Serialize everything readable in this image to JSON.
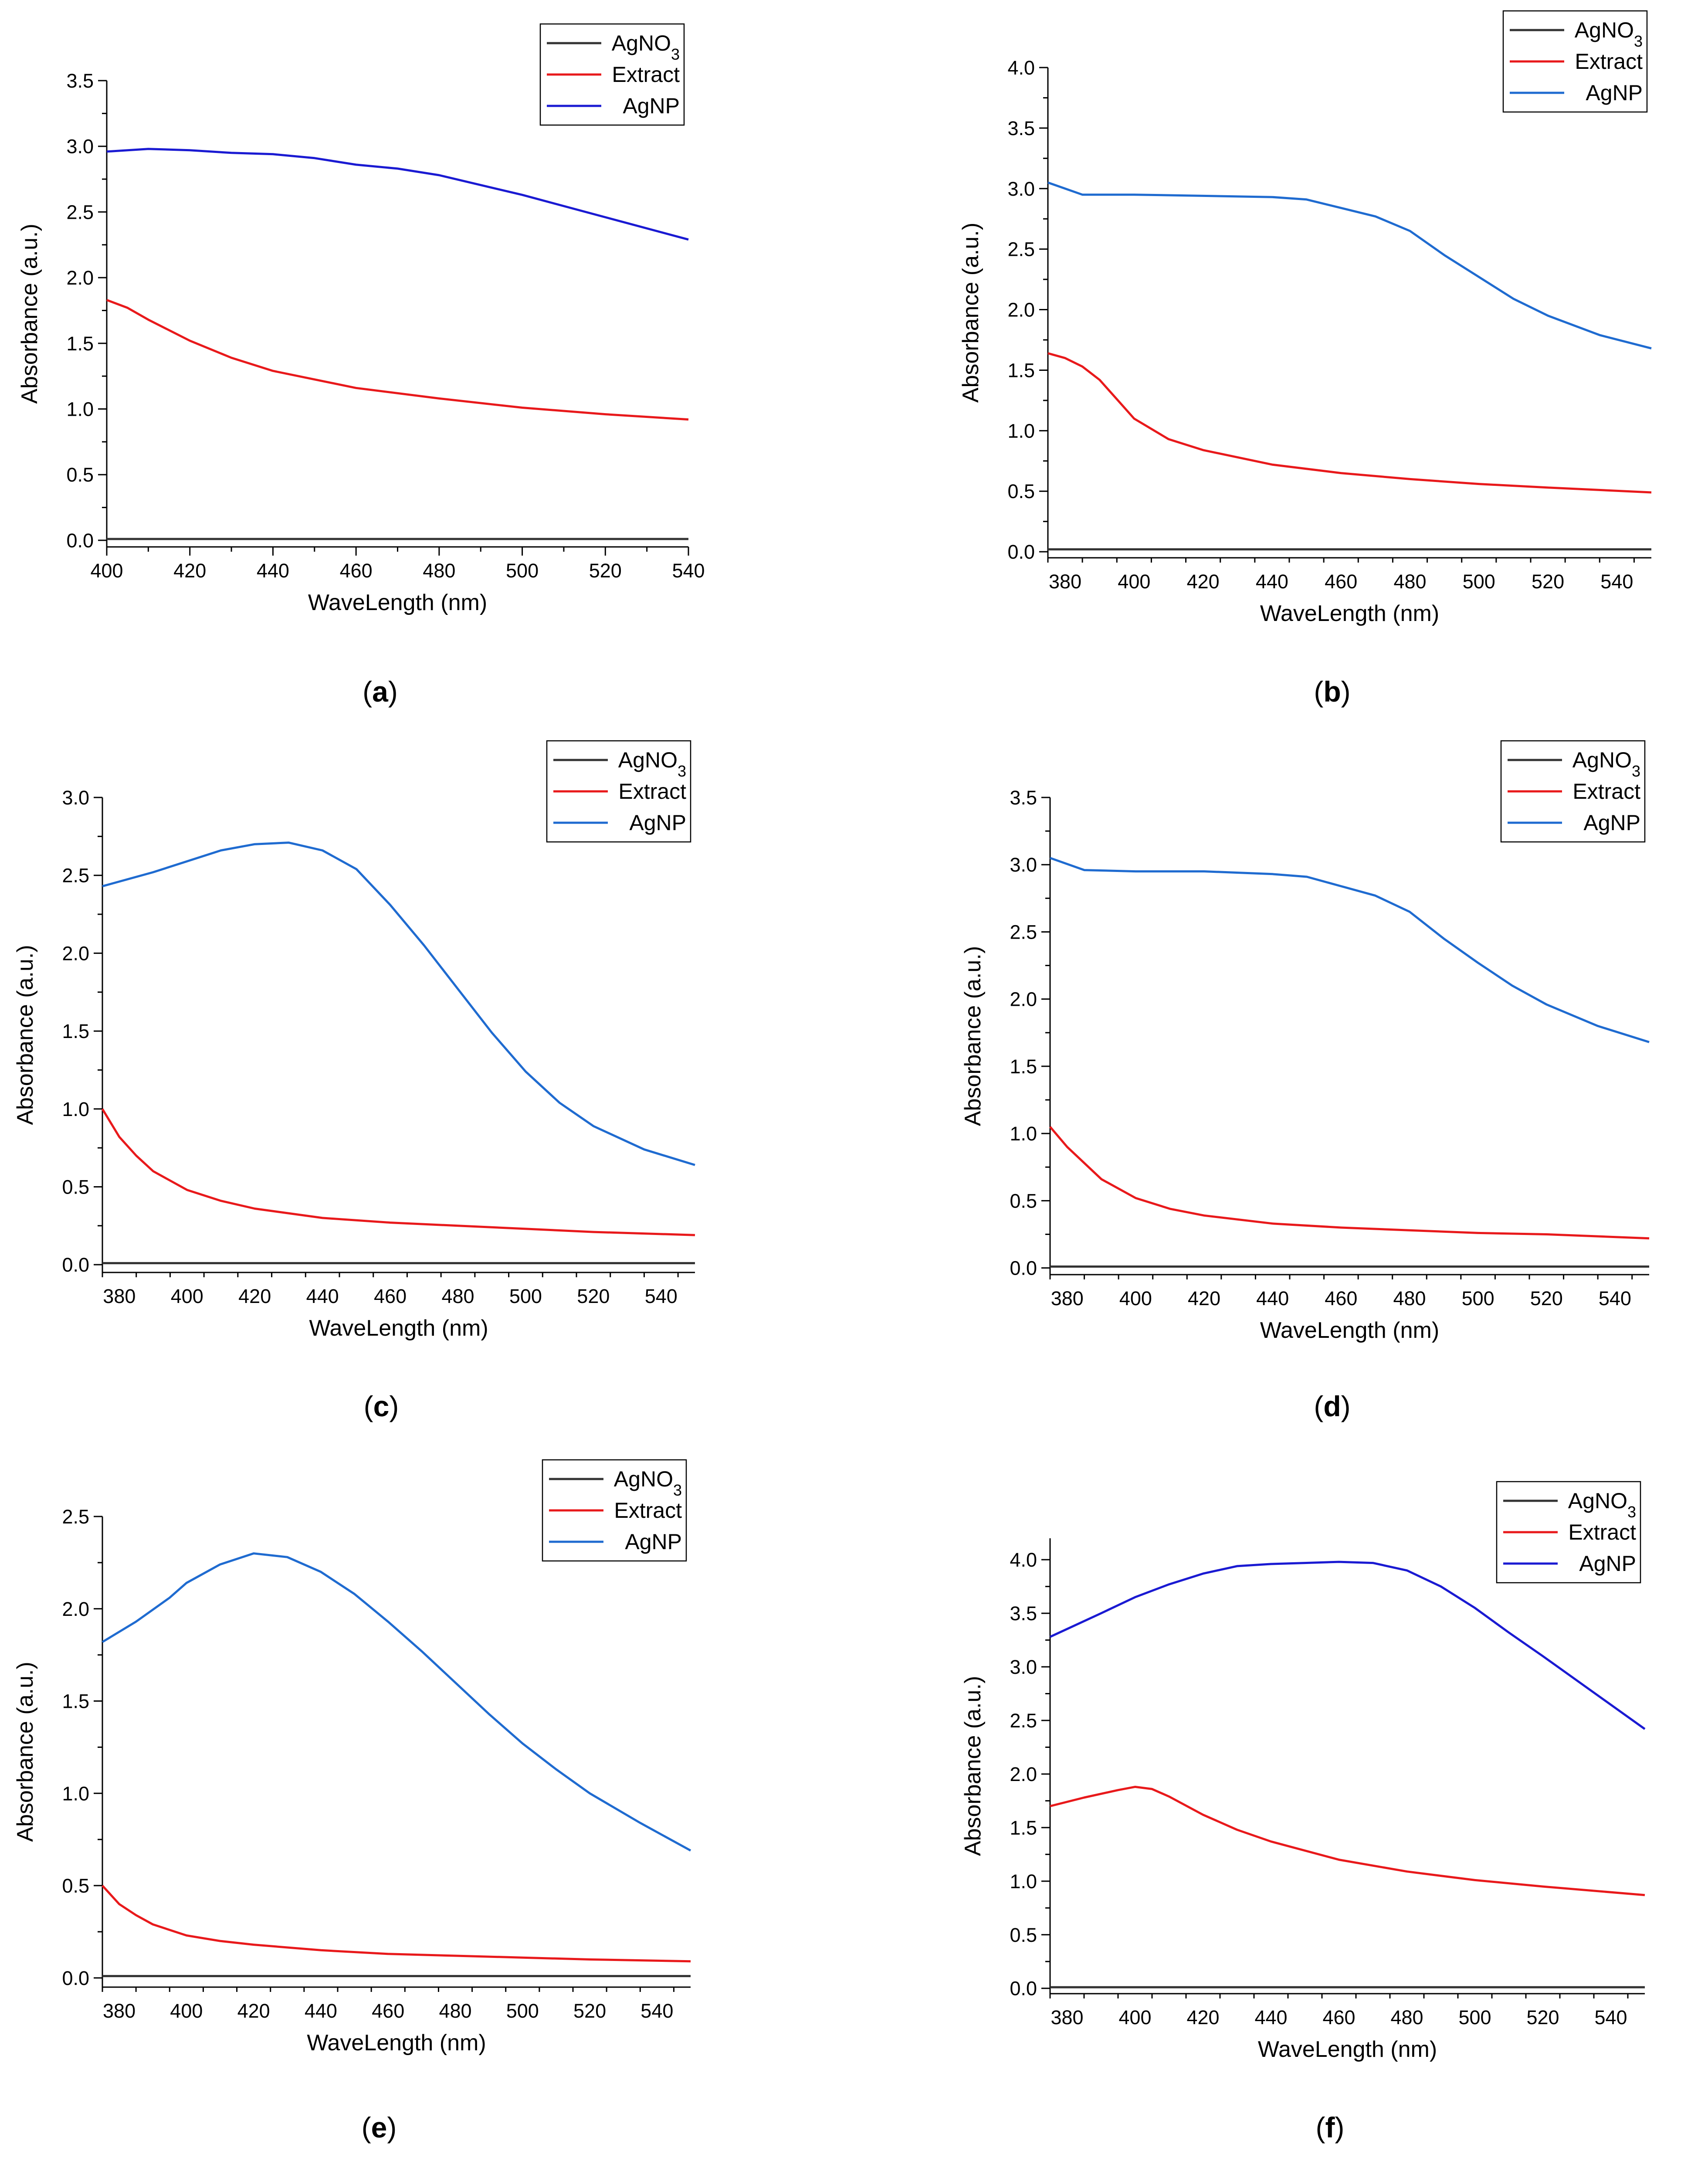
{
  "figure": {
    "panels": [
      "(a)",
      "(b)",
      "(c)",
      "(d)",
      "(e)",
      "(f)"
    ]
  },
  "chart_data": [
    {
      "panel": "(a)",
      "type": "line",
      "xlabel": "WaveLength (nm)",
      "ylabel": "Absorbance (a.u.)",
      "xlim": [
        400,
        540
      ],
      "ylim": [
        -0.05,
        3.5
      ],
      "xticks": [
        400,
        420,
        440,
        460,
        480,
        500,
        520,
        540
      ],
      "yticks": [
        0.0,
        0.5,
        1.0,
        1.5,
        2.0,
        2.5,
        3.0,
        3.5
      ],
      "grid": false,
      "legend": "top-right",
      "series": [
        {
          "name": "AgNO3",
          "color": "#333333",
          "x": [
            400,
            540
          ],
          "y": [
            0.01,
            0.01
          ]
        },
        {
          "name": "Extract",
          "color": "#e8191b",
          "x": [
            400,
            405,
            410,
            420,
            430,
            440,
            460,
            480,
            500,
            520,
            540
          ],
          "y": [
            1.83,
            1.77,
            1.68,
            1.52,
            1.39,
            1.29,
            1.16,
            1.08,
            1.01,
            0.96,
            0.92
          ]
        },
        {
          "name": "AgNP",
          "color": "#1a1ad2",
          "x": [
            400,
            410,
            420,
            430,
            440,
            450,
            460,
            470,
            480,
            500,
            520,
            540
          ],
          "y": [
            2.96,
            2.98,
            2.97,
            2.95,
            2.94,
            2.91,
            2.86,
            2.83,
            2.78,
            2.63,
            2.46,
            2.29
          ]
        }
      ]
    },
    {
      "panel": "(b)",
      "type": "line",
      "xlabel": "WaveLength (nm)",
      "ylabel": "Absorbance (a.u.)",
      "xlim": [
        375,
        550
      ],
      "ylim": [
        -0.05,
        4.0
      ],
      "xticks": [
        380,
        400,
        420,
        440,
        460,
        480,
        500,
        520,
        540
      ],
      "yticks": [
        0.0,
        0.5,
        1.0,
        1.5,
        2.0,
        2.5,
        3.0,
        3.5,
        4.0
      ],
      "grid": false,
      "legend": "top-right",
      "series": [
        {
          "name": "AgNO3",
          "color": "#333333",
          "x": [
            375,
            550
          ],
          "y": [
            0.02,
            0.02
          ]
        },
        {
          "name": "Extract",
          "color": "#e8191b",
          "x": [
            375,
            380,
            385,
            390,
            395,
            400,
            410,
            420,
            440,
            460,
            480,
            500,
            520,
            550
          ],
          "y": [
            1.64,
            1.6,
            1.53,
            1.42,
            1.26,
            1.1,
            0.93,
            0.84,
            0.72,
            0.65,
            0.6,
            0.56,
            0.53,
            0.49
          ]
        },
        {
          "name": "AgNP",
          "color": "#1f6bd0",
          "x": [
            375,
            385,
            400,
            420,
            440,
            450,
            460,
            470,
            480,
            490,
            500,
            510,
            520,
            535,
            550
          ],
          "y": [
            3.05,
            2.95,
            2.95,
            2.94,
            2.93,
            2.91,
            2.84,
            2.77,
            2.65,
            2.45,
            2.27,
            2.09,
            1.95,
            1.79,
            1.68
          ]
        }
      ]
    },
    {
      "panel": "(c)",
      "type": "line",
      "xlabel": "WaveLength (nm)",
      "ylabel": "Absorbance (a.u.)",
      "xlim": [
        375,
        550
      ],
      "ylim": [
        -0.05,
        3.0
      ],
      "xticks": [
        380,
        400,
        420,
        440,
        460,
        480,
        500,
        520,
        540
      ],
      "yticks": [
        0.0,
        0.5,
        1.0,
        1.5,
        2.0,
        2.5,
        3.0
      ],
      "grid": false,
      "legend": "top-right",
      "series": [
        {
          "name": "AgNO3",
          "color": "#333333",
          "x": [
            375,
            550
          ],
          "y": [
            0.01,
            0.01
          ]
        },
        {
          "name": "Extract",
          "color": "#e8191b",
          "x": [
            375,
            380,
            385,
            390,
            400,
            410,
            420,
            440,
            460,
            480,
            500,
            520,
            550
          ],
          "y": [
            1.0,
            0.82,
            0.7,
            0.6,
            0.48,
            0.41,
            0.36,
            0.3,
            0.27,
            0.25,
            0.23,
            0.21,
            0.19
          ]
        },
        {
          "name": "AgNP",
          "color": "#1f6bd0",
          "x": [
            375,
            390,
            400,
            410,
            420,
            430,
            440,
            450,
            460,
            470,
            480,
            490,
            500,
            510,
            520,
            535,
            550
          ],
          "y": [
            2.43,
            2.52,
            2.59,
            2.66,
            2.7,
            2.71,
            2.66,
            2.54,
            2.31,
            2.05,
            1.77,
            1.49,
            1.24,
            1.04,
            0.89,
            0.74,
            0.64
          ]
        }
      ]
    },
    {
      "panel": "(d)",
      "type": "line",
      "xlabel": "WaveLength (nm)",
      "ylabel": "Absorbance (a.u.)",
      "xlim": [
        375,
        550
      ],
      "ylim": [
        -0.05,
        3.5
      ],
      "xticks": [
        380,
        400,
        420,
        440,
        460,
        480,
        500,
        520,
        540
      ],
      "yticks": [
        0.0,
        0.5,
        1.0,
        1.5,
        2.0,
        2.5,
        3.0,
        3.5
      ],
      "grid": false,
      "legend": "top-right",
      "series": [
        {
          "name": "AgNO3",
          "color": "#333333",
          "x": [
            375,
            550
          ],
          "y": [
            0.01,
            0.01
          ]
        },
        {
          "name": "Extract",
          "color": "#e8191b",
          "x": [
            375,
            380,
            385,
            390,
            400,
            410,
            420,
            440,
            460,
            480,
            500,
            520,
            550
          ],
          "y": [
            1.05,
            0.9,
            0.78,
            0.66,
            0.52,
            0.44,
            0.39,
            0.33,
            0.3,
            0.28,
            0.26,
            0.25,
            0.22
          ]
        },
        {
          "name": "AgNP",
          "color": "#1f6bd0",
          "x": [
            375,
            385,
            400,
            420,
            440,
            450,
            460,
            470,
            480,
            490,
            500,
            510,
            520,
            535,
            550
          ],
          "y": [
            3.05,
            2.96,
            2.95,
            2.95,
            2.93,
            2.91,
            2.84,
            2.77,
            2.65,
            2.45,
            2.27,
            2.1,
            1.96,
            1.8,
            1.68
          ]
        }
      ]
    },
    {
      "panel": "(e)",
      "type": "line",
      "xlabel": "WaveLength (nm)",
      "ylabel": "Absorbance (a.u.)",
      "xlim": [
        375,
        550
      ],
      "ylim": [
        -0.05,
        2.5
      ],
      "xticks": [
        380,
        400,
        420,
        440,
        460,
        480,
        500,
        520,
        540
      ],
      "yticks": [
        0.0,
        0.5,
        1.0,
        1.5,
        2.0,
        2.5
      ],
      "grid": false,
      "legend": "top-right",
      "series": [
        {
          "name": "AgNO3",
          "color": "#333333",
          "x": [
            375,
            550
          ],
          "y": [
            0.01,
            0.01
          ]
        },
        {
          "name": "Extract",
          "color": "#e8191b",
          "x": [
            375,
            380,
            385,
            390,
            400,
            410,
            420,
            440,
            460,
            480,
            500,
            520,
            550
          ],
          "y": [
            0.5,
            0.4,
            0.34,
            0.29,
            0.23,
            0.2,
            0.18,
            0.15,
            0.13,
            0.12,
            0.11,
            0.1,
            0.09
          ]
        },
        {
          "name": "AgNP",
          "color": "#1f6bd0",
          "x": [
            375,
            385,
            395,
            400,
            410,
            420,
            430,
            440,
            450,
            460,
            470,
            480,
            490,
            500,
            510,
            520,
            535,
            550
          ],
          "y": [
            1.82,
            1.93,
            2.06,
            2.14,
            2.24,
            2.3,
            2.28,
            2.2,
            2.08,
            1.93,
            1.77,
            1.6,
            1.43,
            1.27,
            1.13,
            1.0,
            0.84,
            0.69
          ]
        }
      ]
    },
    {
      "panel": "(f)",
      "type": "line",
      "xlabel": "WaveLength (nm)",
      "ylabel": "Absorbance (a.u.)",
      "xlim": [
        375,
        550
      ],
      "ylim": [
        -0.05,
        4.2
      ],
      "xticks": [
        380,
        400,
        420,
        440,
        460,
        480,
        500,
        520,
        540
      ],
      "yticks": [
        0.0,
        0.5,
        1.0,
        1.5,
        2.0,
        2.5,
        3.0,
        3.5,
        4.0
      ],
      "grid": false,
      "legend": "top-right",
      "series": [
        {
          "name": "AgNO3",
          "color": "#333333",
          "x": [
            375,
            550
          ],
          "y": [
            0.01,
            0.01
          ]
        },
        {
          "name": "Extract",
          "color": "#e8191b",
          "x": [
            375,
            385,
            395,
            400,
            405,
            410,
            420,
            430,
            440,
            460,
            480,
            500,
            520,
            550
          ],
          "y": [
            1.7,
            1.78,
            1.85,
            1.88,
            1.86,
            1.79,
            1.62,
            1.48,
            1.37,
            1.2,
            1.09,
            1.01,
            0.95,
            0.87
          ]
        },
        {
          "name": "AgNP",
          "color": "#1a1ad2",
          "x": [
            375,
            390,
            400,
            410,
            420,
            430,
            440,
            450,
            460,
            470,
            480,
            490,
            500,
            510,
            520,
            535,
            550
          ],
          "y": [
            3.28,
            3.5,
            3.65,
            3.77,
            3.87,
            3.94,
            3.96,
            3.97,
            3.98,
            3.97,
            3.9,
            3.75,
            3.55,
            3.32,
            3.1,
            2.76,
            2.42
          ]
        }
      ]
    }
  ]
}
